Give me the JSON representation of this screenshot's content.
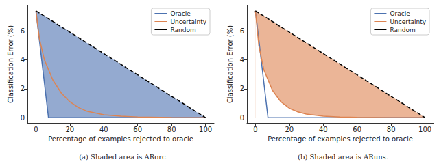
{
  "chart_data": [
    {
      "type": "line",
      "title": "(a) Shaded area is ARorc.",
      "x_label": "Percentage of examples rejected to oracle",
      "y_label": "Classification Error (%)",
      "xlim": [
        -5,
        105
      ],
      "xticks": [
        0,
        20,
        40,
        60,
        80,
        100
      ],
      "ylim": [
        -0.37,
        7.77
      ],
      "yticks": [
        0,
        2,
        4,
        6
      ],
      "grid": false,
      "legend": "upper right",
      "series": [
        {
          "name": "Oracle",
          "color": "#4c72b0",
          "type": "area",
          "line_style": "solid",
          "marker": "none",
          "x": [
            0,
            7.4,
            100
          ],
          "values": [
            7.4,
            0,
            0
          ]
        },
        {
          "name": "Uncertainty",
          "color": "#dd8452",
          "type": "line",
          "line_style": "solid",
          "marker": "none",
          "x": [
            0,
            2,
            5,
            10,
            15,
            20,
            25,
            30,
            40,
            50,
            60,
            80,
            100
          ],
          "values": [
            7.4,
            5.5,
            4.0,
            2.6,
            1.7,
            1.1,
            0.7,
            0.45,
            0.2,
            0.1,
            0.05,
            0.01,
            0
          ]
        },
        {
          "name": "Random",
          "color": "#000000",
          "type": "line",
          "line_style": "dashed",
          "marker": "none",
          "x": [
            0,
            100
          ],
          "values": [
            7.4,
            0
          ]
        }
      ]
    },
    {
      "type": "line",
      "title": "(b) Shaded area is ARuns.",
      "x_label": "Percentage of examples rejected to oracle",
      "y_label": "Classification Error (%)",
      "xlim": [
        -5,
        105
      ],
      "xticks": [
        0,
        20,
        40,
        60,
        80,
        100
      ],
      "ylim": [
        -0.37,
        7.77
      ],
      "yticks": [
        0,
        2,
        4,
        6
      ],
      "grid": false,
      "legend": "upper right",
      "series": [
        {
          "name": "Oracle",
          "color": "#4c72b0",
          "type": "line",
          "line_style": "solid",
          "marker": "none",
          "x": [
            0,
            7.4,
            100
          ],
          "values": [
            7.4,
            0,
            0
          ]
        },
        {
          "name": "Uncertainty",
          "color": "#dd8452",
          "type": "area",
          "line_style": "solid",
          "marker": "none",
          "x": [
            0,
            2,
            5,
            10,
            15,
            20,
            25,
            30,
            40,
            50,
            60,
            80,
            100
          ],
          "values": [
            7.4,
            5.0,
            3.3,
            1.9,
            1.1,
            0.65,
            0.4,
            0.25,
            0.1,
            0.04,
            0.02,
            0,
            0
          ]
        },
        {
          "name": "Random",
          "color": "#000000",
          "type": "line",
          "line_style": "dashed",
          "marker": "none",
          "x": [
            0,
            100
          ],
          "values": [
            7.4,
            0
          ]
        }
      ]
    }
  ]
}
